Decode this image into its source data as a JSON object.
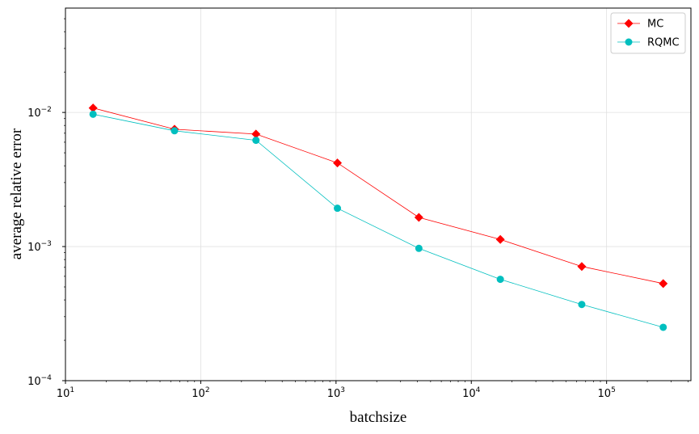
{
  "chart_data": {
    "type": "line",
    "title": "",
    "xlabel": "batchsize",
    "ylabel": "average relative error",
    "xscale": "log",
    "yscale": "log",
    "xlim": [
      10,
      420000
    ],
    "ylim": [
      0.0001,
      0.06
    ],
    "x_ticks": [
      {
        "value": 10,
        "base": "10",
        "exp": "1"
      },
      {
        "value": 100,
        "base": "10",
        "exp": "2"
      },
      {
        "value": 1000,
        "base": "10",
        "exp": "3"
      },
      {
        "value": 10000,
        "base": "10",
        "exp": "4"
      },
      {
        "value": 100000,
        "base": "10",
        "exp": "5"
      }
    ],
    "y_ticks": [
      {
        "value": 0.0001,
        "base": "10",
        "exp": "−4"
      },
      {
        "value": 0.001,
        "base": "10",
        "exp": "−3"
      },
      {
        "value": 0.01,
        "base": "10",
        "exp": "−2"
      }
    ],
    "grid": true,
    "legend_position": "top-right",
    "x": [
      16,
      64,
      256,
      1024,
      4096,
      16384,
      65536,
      262144
    ],
    "series": [
      {
        "name": "MC",
        "color": "#ff0000",
        "marker": "diamond",
        "values": [
          0.0108,
          0.0075,
          0.0069,
          0.0042,
          0.00165,
          0.00113,
          0.00071,
          0.00053
        ]
      },
      {
        "name": "RQMC",
        "color": "#00bfbf",
        "marker": "circle",
        "values": [
          0.0097,
          0.0073,
          0.0062,
          0.00193,
          0.00097,
          0.00057,
          0.00037,
          0.00025
        ]
      }
    ]
  }
}
